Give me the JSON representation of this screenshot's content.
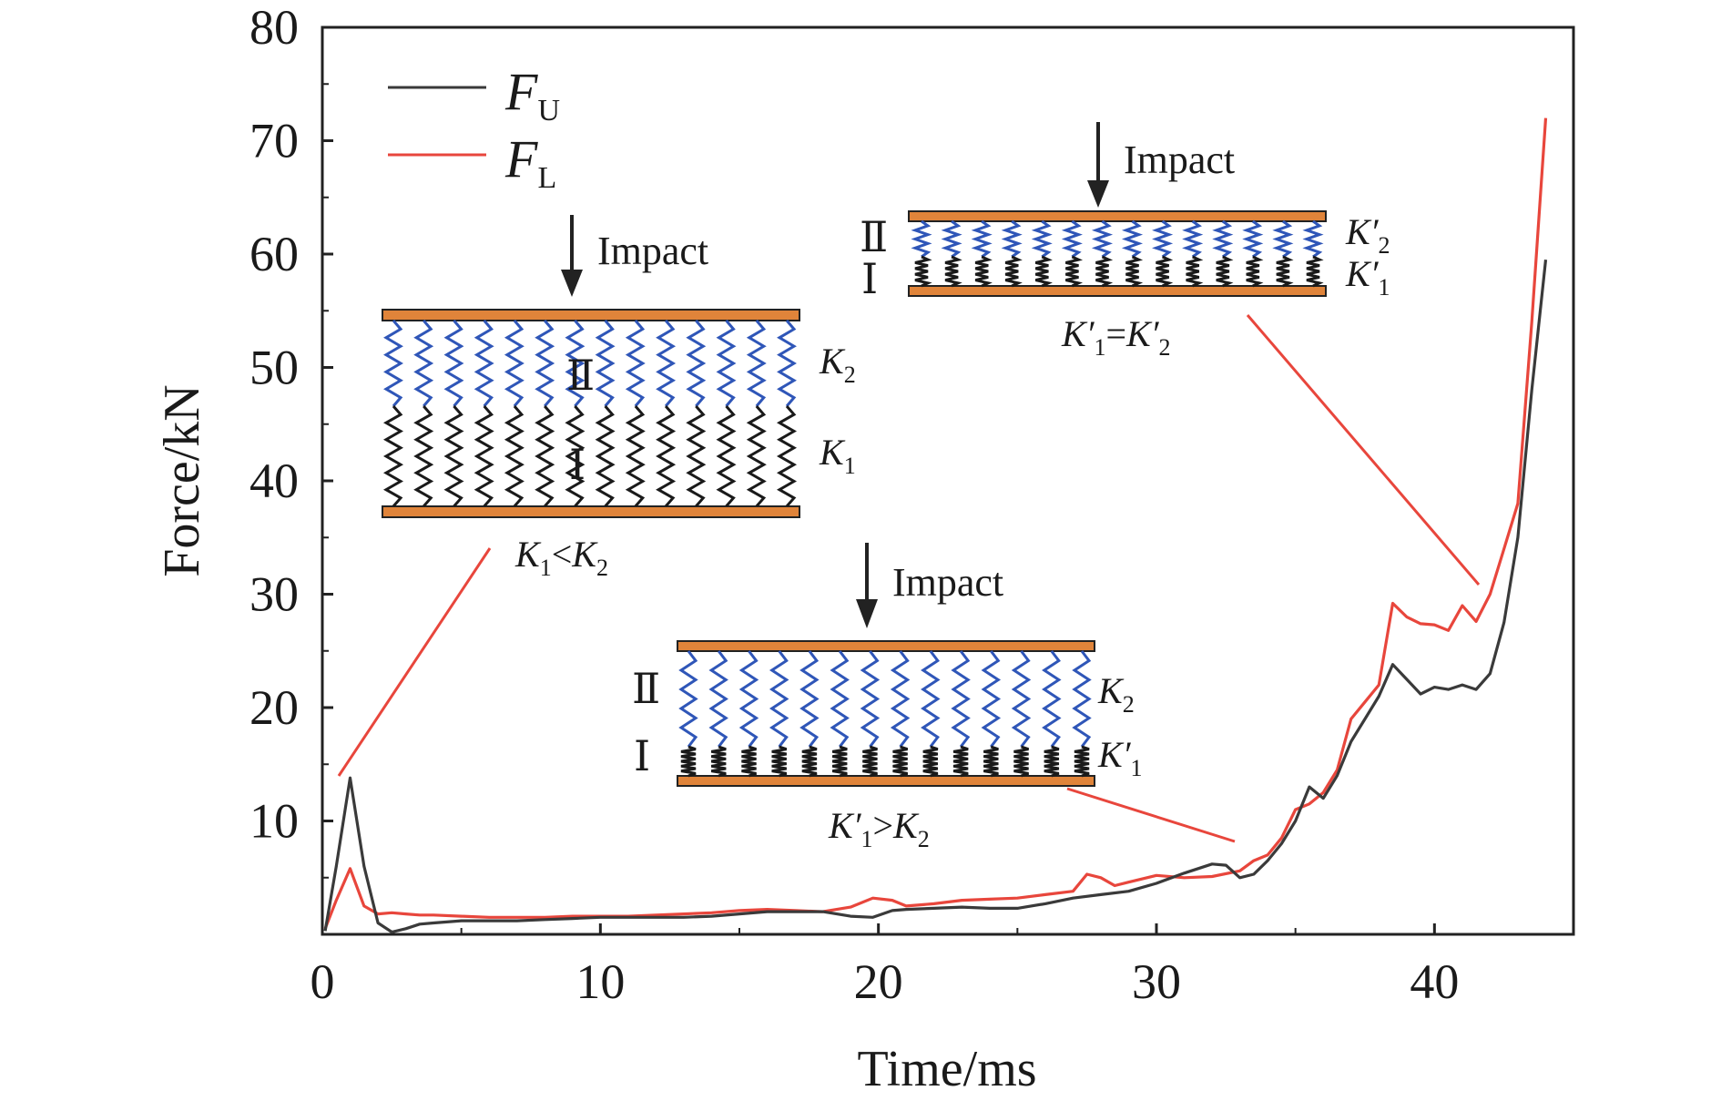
{
  "chart_data": {
    "type": "line",
    "xlabel": "Time/ms",
    "ylabel": "Force/kN",
    "xlim": [
      0,
      45
    ],
    "ylim": [
      0,
      80
    ],
    "xticks": [
      "0",
      "10",
      "20",
      "30",
      "40"
    ],
    "yticks": [
      "10",
      "20",
      "30",
      "40",
      "50",
      "60",
      "70",
      "80"
    ],
    "grid": false,
    "legend_position": "top-left",
    "legend": [
      {
        "main": "F",
        "sub": "U",
        "color": "#3a3a3a"
      },
      {
        "main": "F",
        "sub": "L",
        "color": "#e8463c"
      }
    ],
    "series": [
      {
        "name": "F_U",
        "color": "#3a3a3a",
        "x": [
          0.1,
          0.5,
          1.0,
          1.5,
          2.0,
          2.5,
          3.0,
          3.5,
          4.0,
          5,
          6,
          7,
          8,
          9,
          10,
          11,
          12,
          13,
          14,
          15,
          16,
          17,
          18,
          19,
          19.8,
          20.5,
          21,
          22,
          23,
          24,
          25,
          26,
          27,
          28,
          29,
          30,
          31,
          32,
          32.5,
          33,
          33.5,
          34,
          34.5,
          35,
          35.5,
          36,
          36.5,
          37,
          37.5,
          38,
          38.5,
          39,
          39.5,
          40,
          40.5,
          41,
          41.5,
          42,
          42.5,
          43,
          43.5,
          44
        ],
        "y": [
          0.3,
          6,
          13.8,
          6,
          1.0,
          0.2,
          0.5,
          0.9,
          1.0,
          1.2,
          1.2,
          1.2,
          1.3,
          1.4,
          1.5,
          1.5,
          1.5,
          1.5,
          1.6,
          1.8,
          2.0,
          2.0,
          2.0,
          1.6,
          1.5,
          2.1,
          2.2,
          2.3,
          2.4,
          2.3,
          2.3,
          2.7,
          3.2,
          3.5,
          3.8,
          4.5,
          5.4,
          6.2,
          6.1,
          5.0,
          5.3,
          6.5,
          8.0,
          10.0,
          13.0,
          12.0,
          14.0,
          17.0,
          19.0,
          21.0,
          23.8,
          22.5,
          21.2,
          21.8,
          21.6,
          22.0,
          21.6,
          23.0,
          27.5,
          35.0,
          48.0,
          59.5
        ]
      },
      {
        "name": "F_L",
        "color": "#e8463c",
        "x": [
          0.1,
          0.5,
          1.0,
          1.5,
          2.0,
          2.5,
          3.0,
          3.5,
          4.0,
          5,
          6,
          7,
          8,
          9,
          10,
          11,
          12,
          13,
          14,
          15,
          16,
          17,
          18,
          19,
          19.8,
          20.5,
          21,
          22,
          23,
          24,
          25,
          26,
          27,
          27.5,
          28,
          28.5,
          29,
          30,
          31,
          32,
          33,
          33.5,
          34,
          34.5,
          35,
          35.5,
          36,
          36.5,
          37,
          37.5,
          38,
          38.5,
          39,
          39.5,
          40,
          40.5,
          41,
          41.5,
          42,
          42.5,
          43,
          43.5,
          44
        ],
        "y": [
          0.5,
          3.0,
          5.8,
          2.5,
          1.8,
          1.9,
          1.8,
          1.7,
          1.7,
          1.6,
          1.5,
          1.5,
          1.5,
          1.6,
          1.6,
          1.6,
          1.7,
          1.8,
          1.9,
          2.1,
          2.2,
          2.1,
          2.0,
          2.4,
          3.2,
          3.0,
          2.5,
          2.7,
          3.0,
          3.1,
          3.2,
          3.5,
          3.8,
          5.3,
          5.0,
          4.3,
          4.6,
          5.2,
          5.0,
          5.1,
          5.6,
          6.5,
          7.0,
          8.5,
          11.0,
          11.5,
          12.5,
          14.5,
          19.0,
          20.5,
          22.0,
          29.2,
          28.0,
          27.4,
          27.3,
          26.8,
          29.0,
          27.6,
          30.0,
          34.0,
          38.0,
          54.0,
          72.0
        ]
      }
    ],
    "annotations": [
      {
        "text": "Impact",
        "inset": "K1<K2"
      },
      {
        "text": "Impact",
        "inset": "K1'=K2'"
      },
      {
        "text": "Impact",
        "inset": "K1'>K2"
      }
    ]
  },
  "insets": {
    "a": {
      "impact": "Impact",
      "layer_upper": "Ⅱ",
      "layer_lower": "Ⅰ",
      "k_upper": {
        "main": "K",
        "sub": "2",
        "prime": ""
      },
      "k_lower": {
        "main": "K",
        "sub": "1",
        "prime": ""
      },
      "caption": {
        "a": "K",
        "a_sub": "1",
        "op": "<",
        "b": "K",
        "b_sub": "2"
      }
    },
    "b": {
      "impact": "Impact",
      "layer_upper": "Ⅱ",
      "layer_lower": "Ⅰ",
      "k_upper": {
        "main": "K",
        "sub": "2",
        "prime": "′"
      },
      "k_lower": {
        "main": "K",
        "sub": "1",
        "prime": "′"
      },
      "caption": {
        "a": "K",
        "a_sub": "1",
        "a_prime": "′",
        "op": "=",
        "b": "K",
        "b_sub": "2",
        "b_prime": "′"
      }
    },
    "c": {
      "impact": "Impact",
      "layer_upper": "Ⅱ",
      "layer_lower": "Ⅰ",
      "k_upper": {
        "main": "K",
        "sub": "2",
        "prime": ""
      },
      "k_lower": {
        "main": "K",
        "sub": "1",
        "prime": "′"
      },
      "caption": {
        "a": "K",
        "a_sub": "1",
        "a_prime": "′",
        "op": ">",
        "b": "K",
        "b_sub": "2"
      }
    }
  },
  "colors": {
    "plate": "#e0843a",
    "spring_blue": "#2f56b8",
    "spring_black": "#1a1a1a",
    "leader": "#e8463c"
  }
}
